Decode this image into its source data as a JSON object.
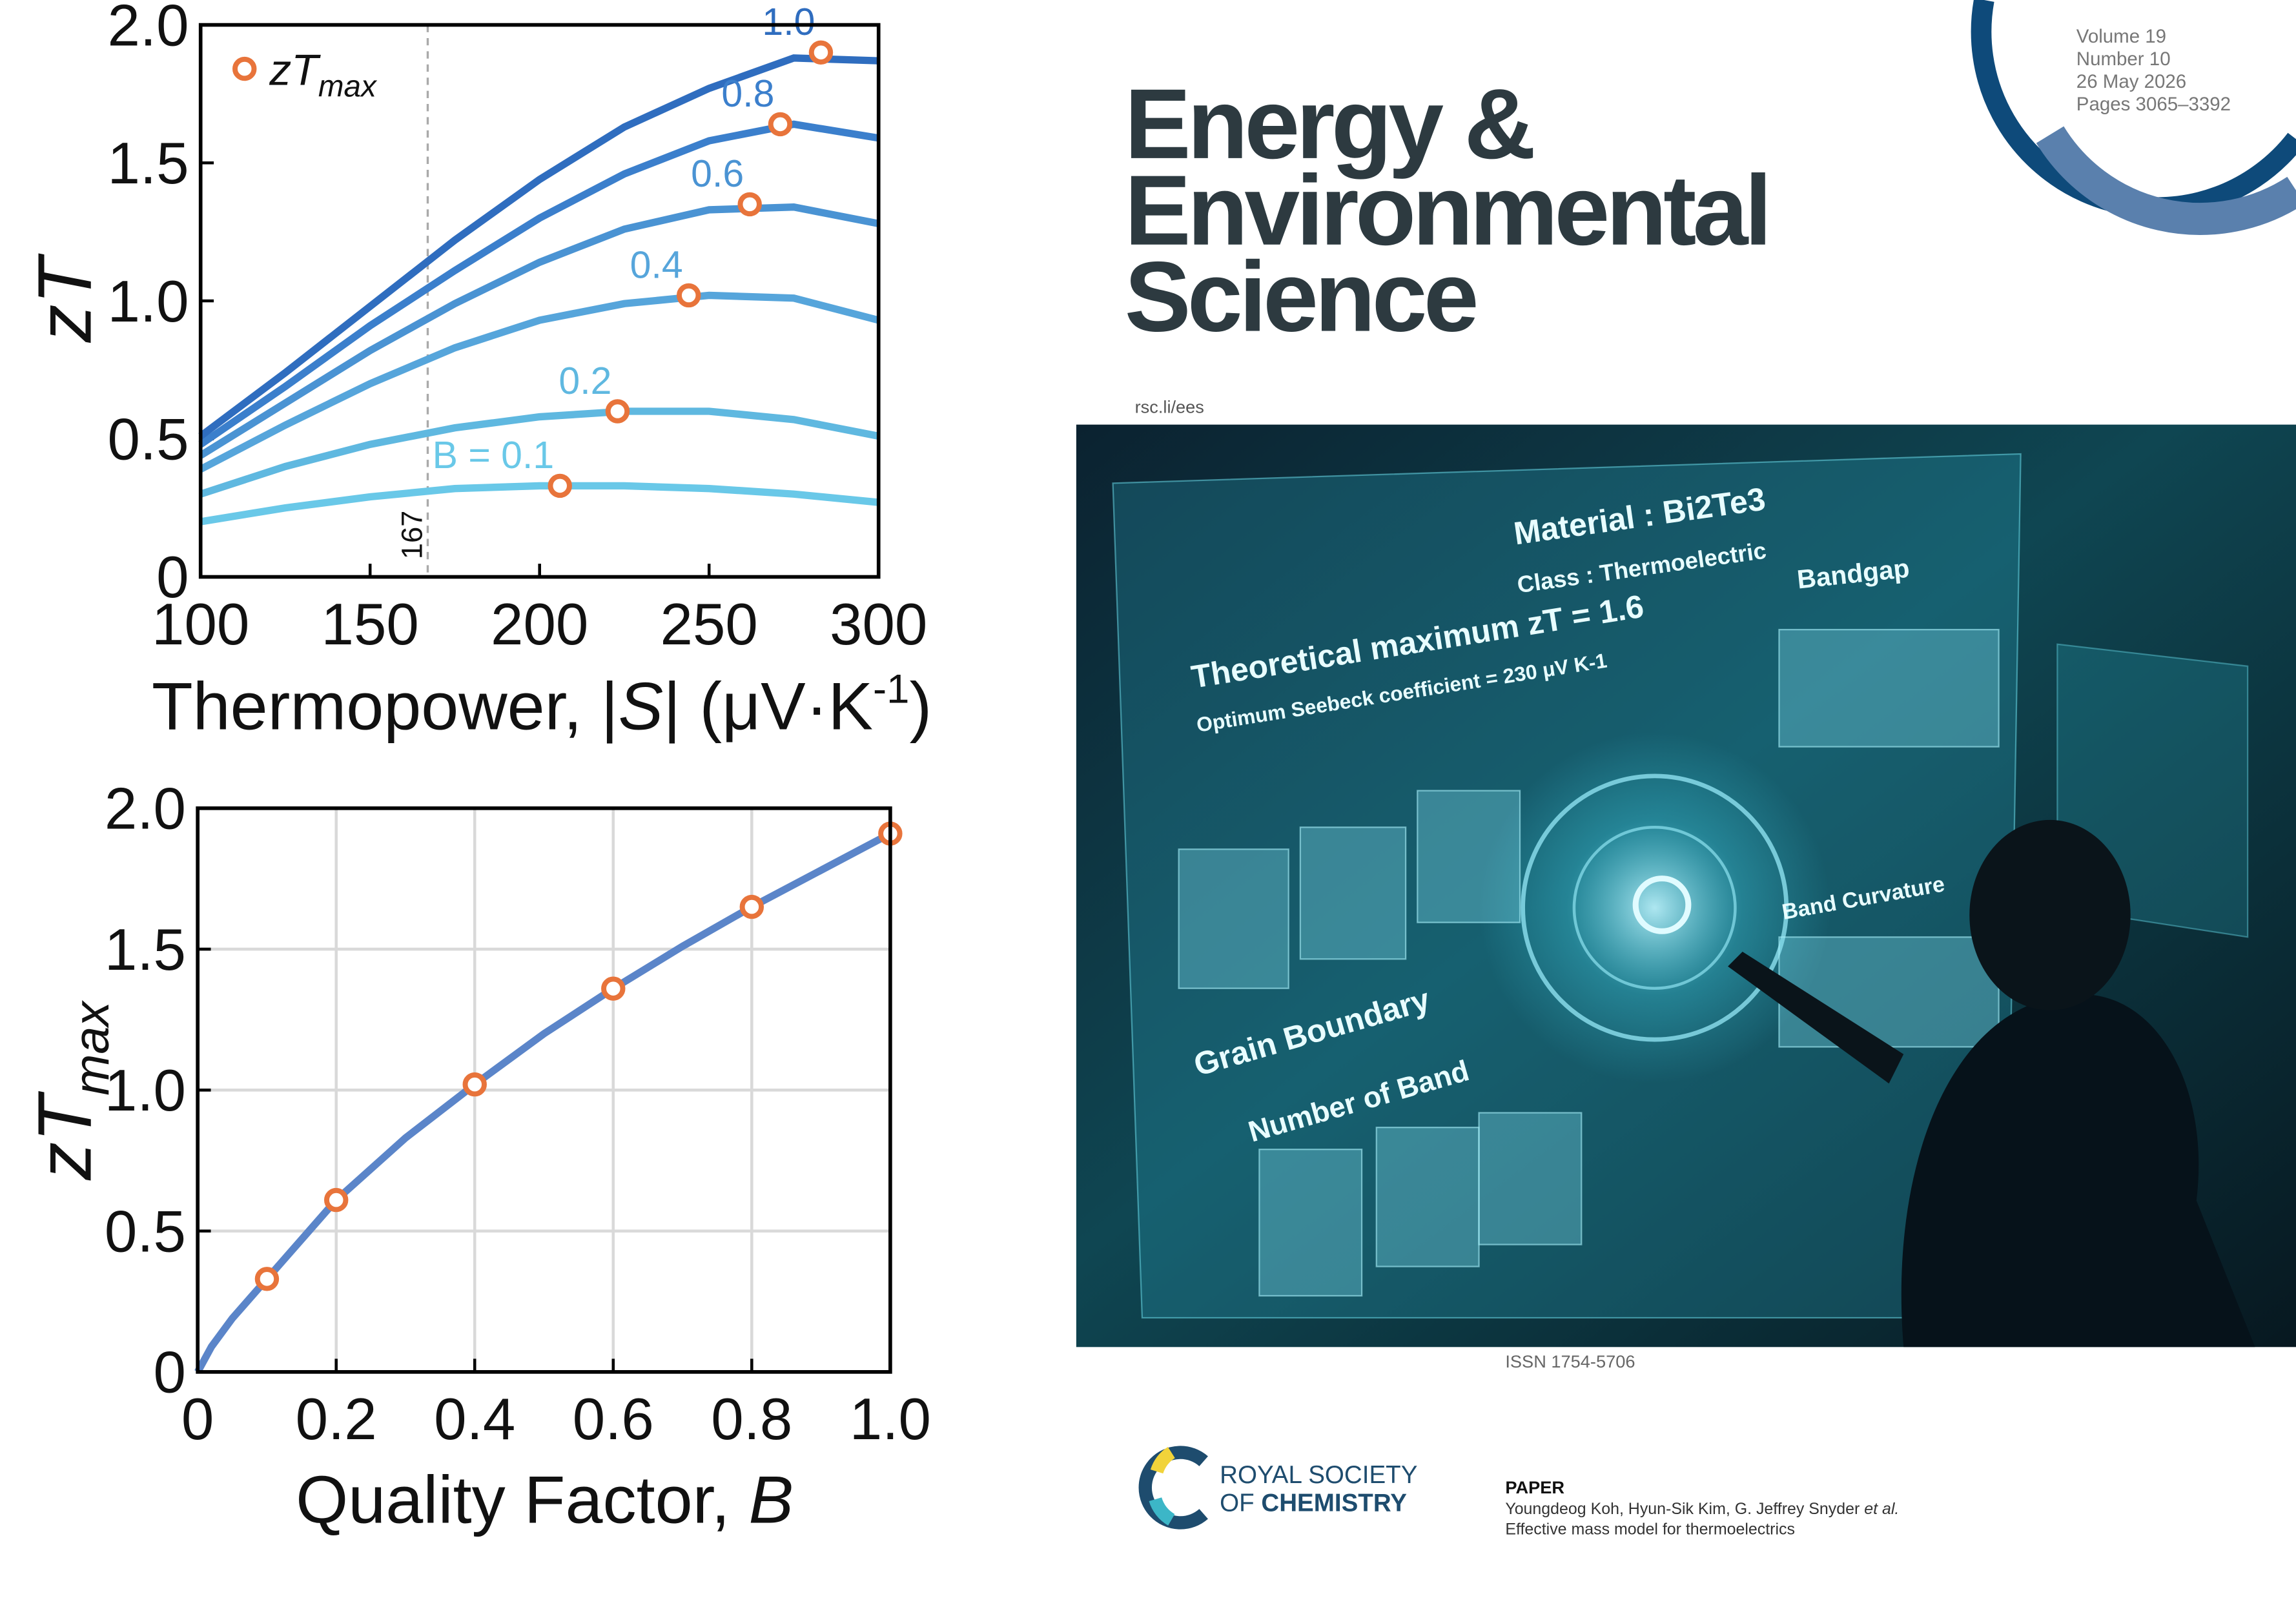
{
  "chart_data": [
    {
      "type": "line",
      "xlabel": [
        "Thermopower, |",
        "S",
        "| (μV·K",
        "-1",
        ")"
      ],
      "ylabel": "zT",
      "xlim": [
        100,
        300
      ],
      "xticks": [
        100,
        150,
        200,
        250,
        300
      ],
      "ylim": [
        0,
        2
      ],
      "yticks": [
        0,
        0.5,
        {
          "value": 1,
          "label": "1.0"
        },
        1.5,
        {
          "value": 2,
          "label": "2.0"
        }
      ],
      "grid": false,
      "x": [
        100,
        125,
        150,
        175,
        200,
        225,
        250,
        275,
        300
      ],
      "series": [
        {
          "name": "B = 0.1",
          "color": "#69c8e8",
          "values": [
            0.2,
            0.25,
            0.29,
            0.32,
            0.33,
            0.33,
            0.32,
            0.3,
            0.27
          ]
        },
        {
          "name": "0.2",
          "color": "#5fb8e0",
          "values": [
            0.3,
            0.4,
            0.48,
            0.54,
            0.58,
            0.6,
            0.6,
            0.57,
            0.51
          ]
        },
        {
          "name": "0.4",
          "color": "#56a5db",
          "values": [
            0.39,
            0.55,
            0.7,
            0.83,
            0.93,
            0.99,
            1.02,
            1.01,
            0.93
          ]
        },
        {
          "name": "0.6",
          "color": "#4a93d3",
          "values": [
            0.44,
            0.63,
            0.82,
            0.99,
            1.14,
            1.26,
            1.33,
            1.34,
            1.28
          ]
        },
        {
          "name": "0.8",
          "color": "#3b7fcc",
          "values": [
            0.48,
            0.69,
            0.91,
            1.11,
            1.3,
            1.46,
            1.58,
            1.64,
            1.59
          ]
        },
        {
          "name": "1.0",
          "color": "#2f6dbf",
          "values": [
            0.51,
            0.74,
            0.98,
            1.22,
            1.44,
            1.63,
            1.77,
            1.88,
            1.87
          ]
        }
      ],
      "markers": {
        "color": "#e8743b",
        "x": [
          206,
          223,
          244,
          262,
          271,
          283
        ],
        "values": [
          0.33,
          0.6,
          1.02,
          1.35,
          1.64,
          1.9
        ]
      },
      "legend_label": [
        "zT",
        "max"
      ],
      "vline": 167
    },
    {
      "type": "line",
      "xlabel": [
        "Quality Factor, ",
        "B"
      ],
      "ylabel": [
        "zT",
        "max"
      ],
      "xlim": [
        0,
        1
      ],
      "xticks": [
        0,
        0.2,
        0.4,
        0.6,
        0.8,
        {
          "value": 1,
          "label": "1.0"
        }
      ],
      "ylim": [
        0,
        2
      ],
      "yticks": [
        0,
        0.5,
        {
          "value": 1,
          "label": "1.0"
        },
        1.5,
        {
          "value": 2,
          "label": "2.0"
        }
      ],
      "grid": true,
      "x": [
        0,
        0.02,
        0.05,
        0.1,
        0.2,
        0.3,
        0.4,
        0.5,
        0.6,
        0.7,
        0.8,
        0.9,
        1.0
      ],
      "series": [
        {
          "color": "#5b85c9",
          "values": [
            0,
            0.09,
            0.19,
            0.33,
            0.61,
            0.83,
            1.02,
            1.2,
            1.36,
            1.51,
            1.65,
            1.78,
            1.91
          ]
        }
      ],
      "markers": {
        "color": "#e8743b",
        "x": [
          0.1,
          0.2,
          0.4,
          0.6,
          0.8,
          1.0
        ],
        "values": [
          0.33,
          0.61,
          1.02,
          1.36,
          1.65,
          1.91
        ]
      }
    }
  ],
  "cover": {
    "issue": [
      "Volume 19",
      "Number 10",
      "26 May 2026",
      "Pages 3065–3392"
    ],
    "journal": [
      "Energy &",
      "Environmental",
      "Science"
    ],
    "url": "rsc.li/ees",
    "image_texts": [
      "Material : Bi2Te3",
      "Class : Thermoelectric",
      "Theoretical maximum zT = 1.6",
      "Optimum Seebeck coefficient = 230 μV K-1",
      "Bandgap",
      "Grain Boundary",
      "Number of Band",
      "Band Curvature"
    ],
    "issn": "ISSN 1754-5706",
    "publisher": [
      "ROYAL SOCIETY",
      "OF ",
      "CHEMISTRY"
    ],
    "section": "PAPER",
    "authors": [
      "Youngdeog Koh, Hyun-Sik Kim, G. Jeffrey Snyder ",
      "et al."
    ],
    "article": "Effective mass model for thermoelectrics"
  }
}
